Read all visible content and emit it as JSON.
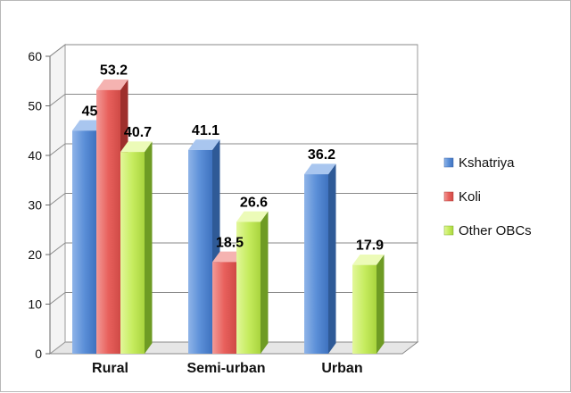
{
  "chart_data": {
    "type": "bar",
    "categories": [
      "Rural",
      "Semi-urban",
      "Urban"
    ],
    "series": [
      {
        "name": "Kshatriya",
        "values": [
          45,
          41.1,
          36.2
        ],
        "color": "#4f81bd"
      },
      {
        "name": "Koli",
        "values": [
          53.2,
          18.5,
          null
        ],
        "color": "#e0504d"
      },
      {
        "name": "Other OBCs",
        "values": [
          40.7,
          26.6,
          17.9
        ],
        "color": "#9bd13b"
      }
    ],
    "data_labels": [
      [
        "45",
        "41.1",
        "36.2"
      ],
      [
        "53.2",
        "18.5",
        ""
      ],
      [
        "40.7",
        "26.6",
        "17.9"
      ]
    ],
    "yticks": [
      0,
      10,
      20,
      30,
      40,
      50,
      60
    ],
    "ylim": [
      0,
      60
    ],
    "grid": true,
    "legend_position": "right",
    "title": "",
    "xlabel": "",
    "ylabel": ""
  }
}
